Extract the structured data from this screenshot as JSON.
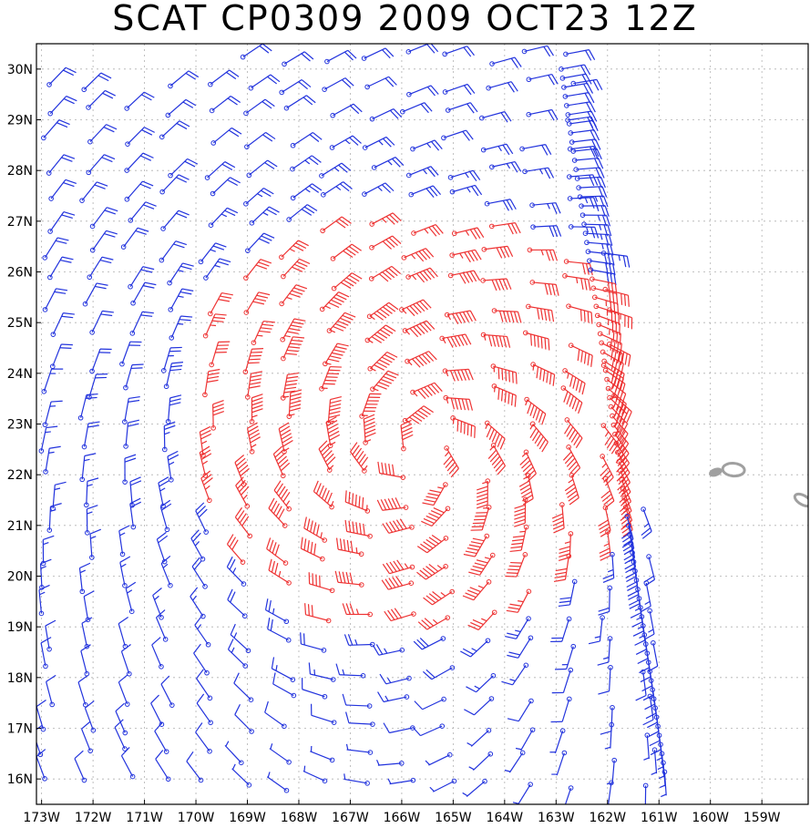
{
  "title": "SCAT CP0309 2009 OCT23 12Z",
  "map": {
    "lon_labels": [
      "173W",
      "172W",
      "171W",
      "170W",
      "169W",
      "168W",
      "167W",
      "166W",
      "165W",
      "164W",
      "163W",
      "162W",
      "161W",
      "160W",
      "159W"
    ],
    "lat_labels": [
      "30N",
      "29N",
      "28N",
      "27N",
      "26N",
      "25N",
      "24N",
      "23N",
      "22N",
      "21N",
      "20N",
      "19N",
      "18N",
      "17N",
      "16N"
    ],
    "lon_range": [
      -173.1,
      -158.1
    ],
    "lat_range": [
      15.5,
      30.5
    ],
    "grid": true,
    "legend": "none",
    "colors": {
      "low_wind": "#2233dd",
      "high_wind": "#ee3333",
      "land": "#a0a0a0",
      "grid": "#b0b0b0",
      "frame": "#000000"
    },
    "wind_barbs": {
      "storm_center": {
        "lat": 22.5,
        "lon": -165.7
      },
      "color_threshold_kt": 30
    },
    "land_features": [
      {
        "name": "island-left",
        "lon": -159.9,
        "lat": 22.05
      },
      {
        "name": "island-right",
        "lon": -159.55,
        "lat": 22.1
      },
      {
        "name": "island-edge",
        "lon": -158.2,
        "lat": 21.5
      }
    ]
  }
}
